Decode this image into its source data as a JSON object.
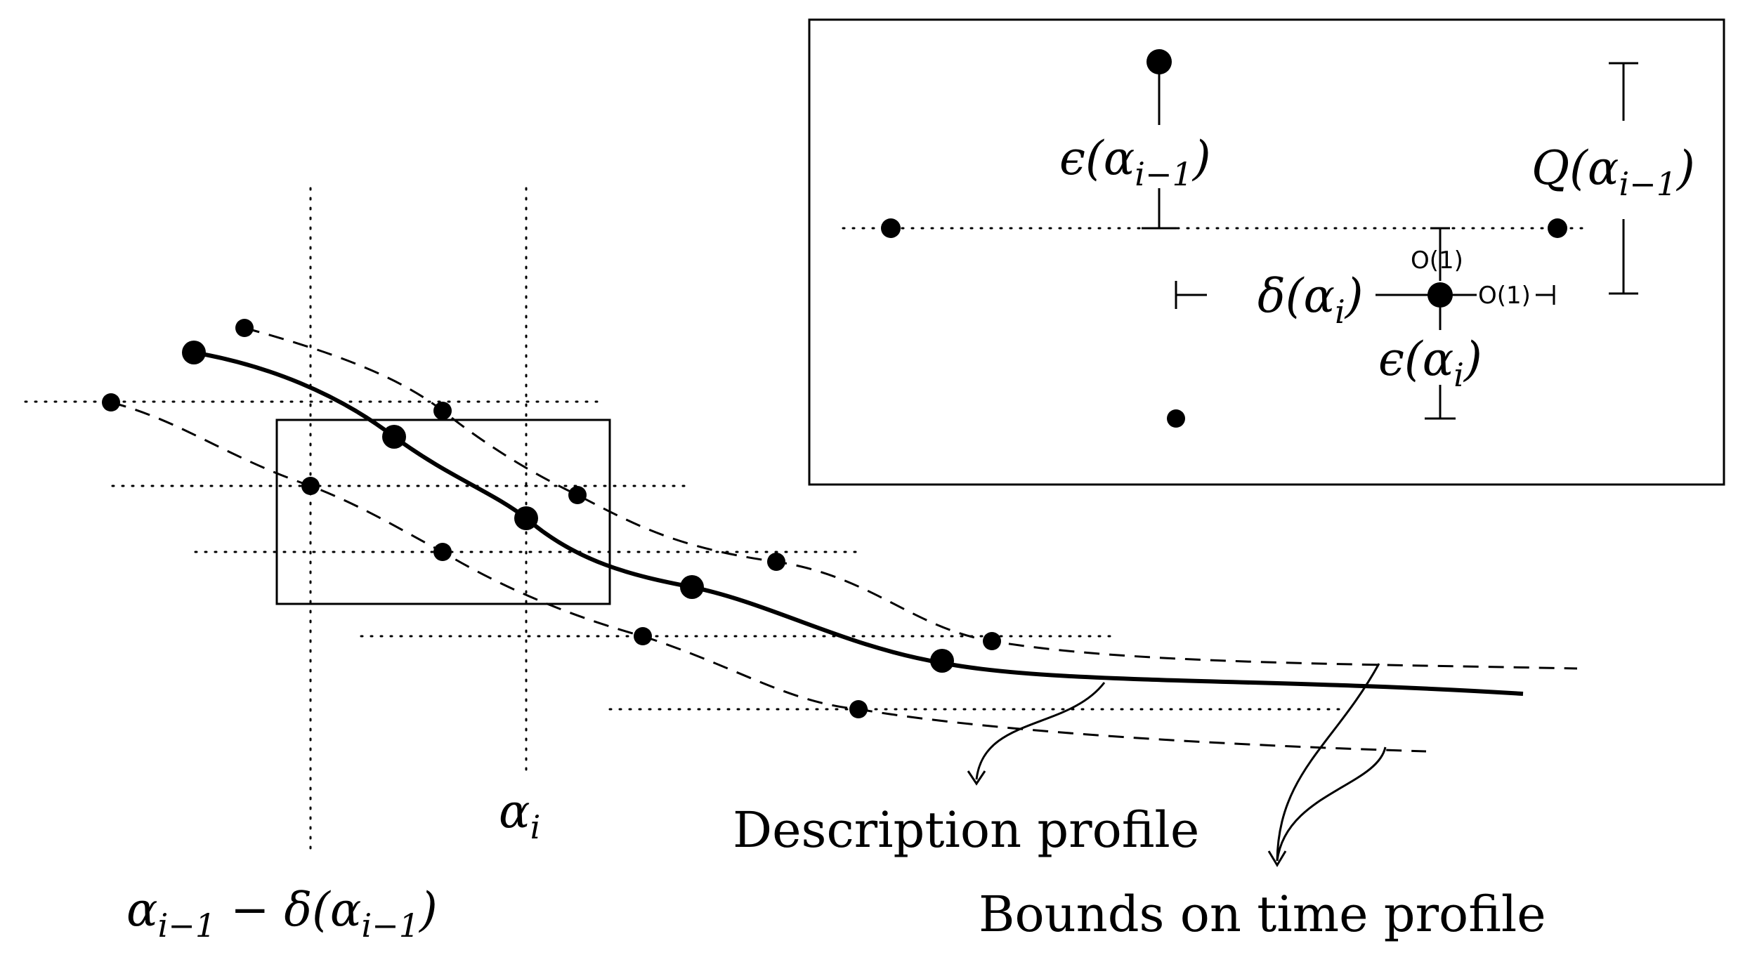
{
  "labels": {
    "alpha_i": "α",
    "alpha_i_sub": "i",
    "alpha_im1": "α",
    "alpha_im1_sub": "i−1",
    "minus_delta": " − δ(",
    "alpha2": "α",
    "alpha2_sub": "i−1",
    "close_paren": ")",
    "description_profile": "Description profile",
    "bounds_on_time_profile": "Bounds on time profile"
  },
  "inset": {
    "eps_im1_a": "ϵ(α",
    "eps_im1_sub": "i−1",
    "eps_im1_close": ")",
    "Q_im1_a": "Q(α",
    "Q_im1_sub": "i−1",
    "Q_im1_close": ")",
    "delta_i_a": "δ(α",
    "delta_i_sub": "i",
    "delta_i_close": ")",
    "eps_i_a": "ϵ(α",
    "eps_i_sub": "i",
    "eps_i_close": ")",
    "O1_top": "O(1)",
    "O1_right": "O(1)"
  }
}
